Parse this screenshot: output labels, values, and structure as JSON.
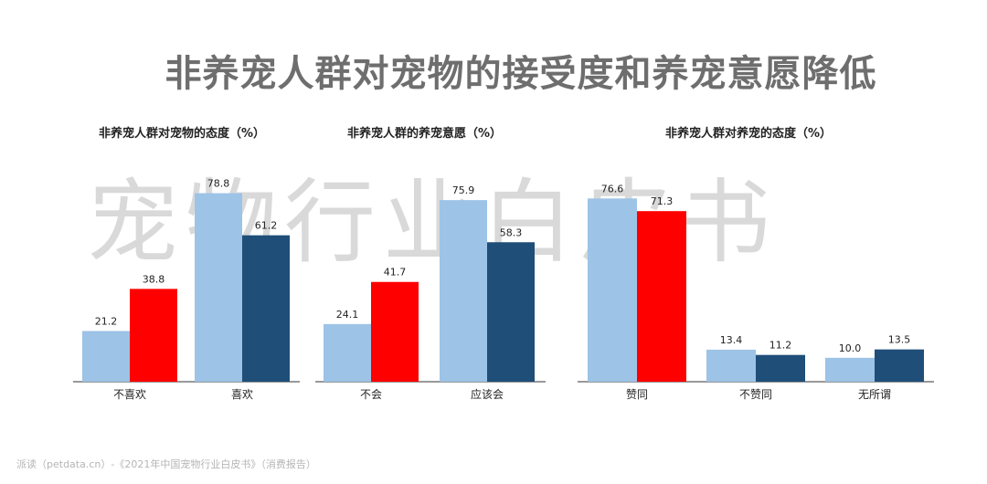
{
  "title": "非养宠人群对宠物的接受度和养宠意愿降低",
  "watermark": "宠物行业白皮书",
  "footer": "派读（petdata.cn）-《2021年中国宠物行业白皮书》（消费报告）",
  "colors": {
    "light": "#9dc3e6",
    "red": "#ff0000",
    "dark": "#1f4e79"
  },
  "chart_data": [
    {
      "type": "bar",
      "title": "非养宠人群对宠物的态度（%）",
      "categories": [
        "不喜欢",
        "喜欢"
      ],
      "values": [
        [
          21.2,
          38.8
        ],
        [
          78.8,
          61.2
        ]
      ],
      "colors": [
        [
          "light",
          "red"
        ],
        [
          "light",
          "dark"
        ]
      ],
      "ylim": [
        0,
        100
      ]
    },
    {
      "type": "bar",
      "title": "非养宠人群的养宠意愿（%）",
      "categories": [
        "不会",
        "应该会"
      ],
      "values": [
        [
          24.1,
          41.7
        ],
        [
          75.9,
          58.3
        ]
      ],
      "colors": [
        [
          "light",
          "red"
        ],
        [
          "light",
          "dark"
        ]
      ],
      "ylim": [
        0,
        100
      ]
    },
    {
      "type": "bar",
      "title": "非养宠人群对养宠的态度（%）",
      "categories": [
        "赞同",
        "不赞同",
        "无所谓"
      ],
      "values": [
        [
          76.6,
          71.3
        ],
        [
          13.4,
          11.2
        ],
        [
          10.0,
          13.5
        ]
      ],
      "colors": [
        [
          "light",
          "red"
        ],
        [
          "light",
          "dark"
        ],
        [
          "light",
          "dark"
        ]
      ],
      "ylim": [
        0,
        100
      ]
    }
  ]
}
